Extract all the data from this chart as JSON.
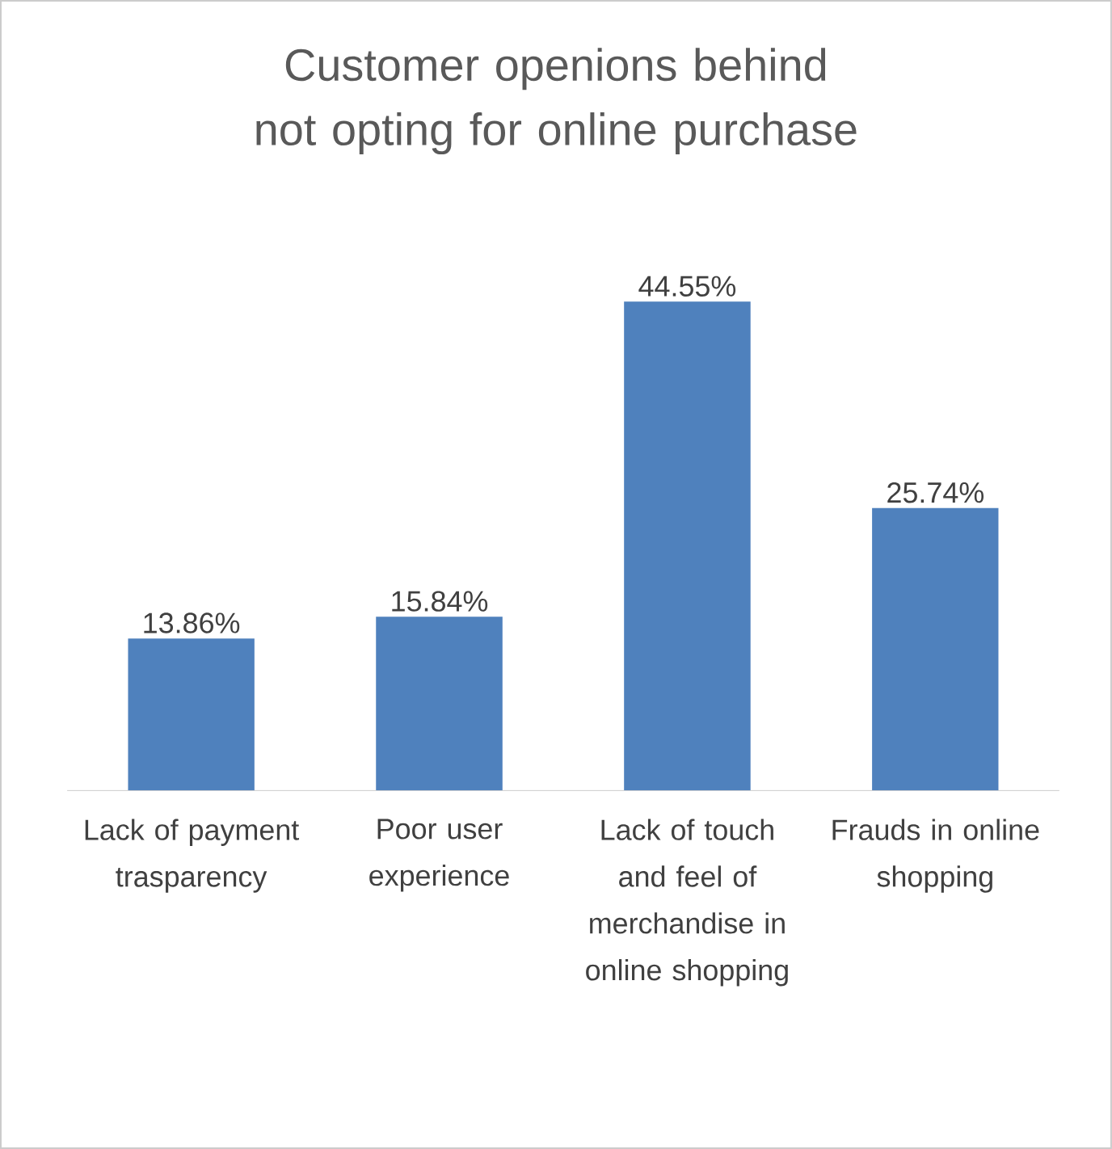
{
  "chart_data": {
    "type": "bar",
    "title": "Customer openions behind not opting for online purchase",
    "categories": [
      "Lack of payment trasparency",
      "Poor user experience",
      "Lack of touch and feel of merchandise in online shopping",
      "Frauds in online shopping"
    ],
    "values": [
      13.86,
      15.84,
      44.55,
      25.74
    ],
    "value_labels": [
      "13.86%",
      "15.84%",
      "44.55%",
      "25.74%"
    ],
    "color": "#4f81bd"
  }
}
